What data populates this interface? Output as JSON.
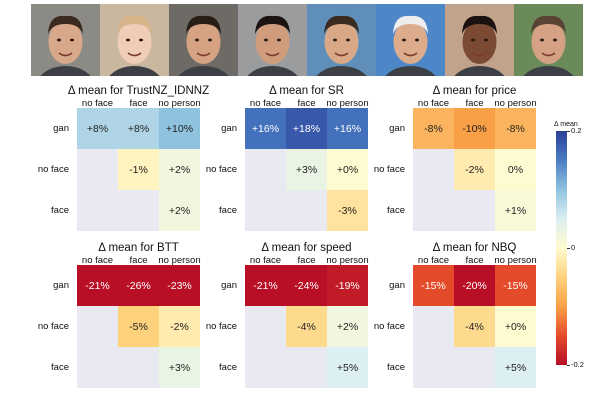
{
  "colorbar": {
    "title": "Δ mean",
    "ticks": [
      "0.2",
      "0",
      "-0.2"
    ],
    "colors": [
      "#2c3e99",
      "#4a7ec4",
      "#8fc2de",
      "#dceff2",
      "#fffbd0",
      "#fed27d",
      "#f9a047",
      "#e44b2a",
      "#b80f26"
    ]
  },
  "faces": [
    {
      "skin": "#d7a98a",
      "hair": "#3b2a1f",
      "bg": "#8c8a84"
    },
    {
      "skin": "#efcdb6",
      "hair": "#d8b48a",
      "bg": "#c9b79f"
    },
    {
      "skin": "#d6a382",
      "hair": "#2a1d16",
      "bg": "#6e6a65"
    },
    {
      "skin": "#cf9c7c",
      "hair": "#1c1410",
      "bg": "#9a9c9d"
    },
    {
      "skin": "#d9a886",
      "hair": "#3a2a20",
      "bg": "#5f8fb8"
    },
    {
      "skin": "#dcac8d",
      "hair": "#eeeeee",
      "bg": "#4d87c8"
    },
    {
      "skin": "#7a4a32",
      "hair": "#1a1110",
      "bg": "#c1a38c"
    },
    {
      "skin": "#d4a184",
      "hair": "#5a4334",
      "bg": "#6a8a5a"
    }
  ],
  "chart_data": [
    {
      "type": "heatmap",
      "title": "Δ mean for TrustNZ_IDNNZ",
      "columns": [
        "no face",
        "face",
        "no person"
      ],
      "rows": [
        "gan",
        "no face",
        "face"
      ],
      "values": [
        [
          0.08,
          0.08,
          0.1
        ],
        [
          null,
          -0.01,
          0.02
        ],
        [
          null,
          null,
          0.02
        ]
      ],
      "labels": [
        [
          "+8%",
          "+8%",
          "+10%"
        ],
        [
          "",
          "-1%",
          "+2%"
        ],
        [
          "",
          "",
          "+2%"
        ]
      ]
    },
    {
      "type": "heatmap",
      "title": "Δ mean for SR",
      "columns": [
        "no face",
        "face",
        "no person"
      ],
      "rows": [
        "gan",
        "no face",
        "face"
      ],
      "values": [
        [
          0.16,
          0.18,
          0.16
        ],
        [
          null,
          0.03,
          0.0
        ],
        [
          null,
          null,
          -0.03
        ]
      ],
      "labels": [
        [
          "+16%",
          "+18%",
          "+16%"
        ],
        [
          "",
          "+3%",
          "+0%"
        ],
        [
          "",
          "",
          "-3%"
        ]
      ]
    },
    {
      "type": "heatmap",
      "title": "Δ mean for price",
      "columns": [
        "no face",
        "face",
        "no person"
      ],
      "rows": [
        "gan",
        "no face",
        "face"
      ],
      "values": [
        [
          -0.08,
          -0.1,
          -0.08
        ],
        [
          null,
          -0.02,
          0.0
        ],
        [
          null,
          null,
          0.01
        ]
      ],
      "labels": [
        [
          "-8%",
          "-10%",
          "-8%"
        ],
        [
          "",
          "-2%",
          "0%"
        ],
        [
          "",
          "",
          "+1%"
        ]
      ]
    },
    {
      "type": "heatmap",
      "title": "Δ mean for BTT",
      "columns": [
        "no face",
        "face",
        "no person"
      ],
      "rows": [
        "gan",
        "no face",
        "face"
      ],
      "values": [
        [
          -0.21,
          -0.26,
          -0.23
        ],
        [
          null,
          -0.05,
          -0.02
        ],
        [
          null,
          null,
          0.03
        ]
      ],
      "labels": [
        [
          "-21%",
          "-26%",
          "-23%"
        ],
        [
          "",
          "-5%",
          "-2%"
        ],
        [
          "",
          "",
          "+3%"
        ]
      ]
    },
    {
      "type": "heatmap",
      "title": "Δ mean for speed",
      "columns": [
        "no face",
        "face",
        "no person"
      ],
      "rows": [
        "gan",
        "no face",
        "face"
      ],
      "values": [
        [
          -0.21,
          -0.24,
          -0.19
        ],
        [
          null,
          -0.04,
          0.02
        ],
        [
          null,
          null,
          0.05
        ]
      ],
      "labels": [
        [
          "-21%",
          "-24%",
          "-19%"
        ],
        [
          "",
          "-4%",
          "+2%"
        ],
        [
          "",
          "",
          "+5%"
        ]
      ]
    },
    {
      "type": "heatmap",
      "title": "Δ mean for NBQ",
      "columns": [
        "no face",
        "face",
        "no person"
      ],
      "rows": [
        "gan",
        "no face",
        "face"
      ],
      "values": [
        [
          -0.15,
          -0.2,
          -0.15
        ],
        [
          null,
          -0.04,
          0.0
        ],
        [
          null,
          null,
          0.05
        ]
      ],
      "labels": [
        [
          "-15%",
          "-20%",
          "-15%"
        ],
        [
          "",
          "-4%",
          "+0%"
        ],
        [
          "",
          "",
          "+5%"
        ]
      ]
    }
  ]
}
